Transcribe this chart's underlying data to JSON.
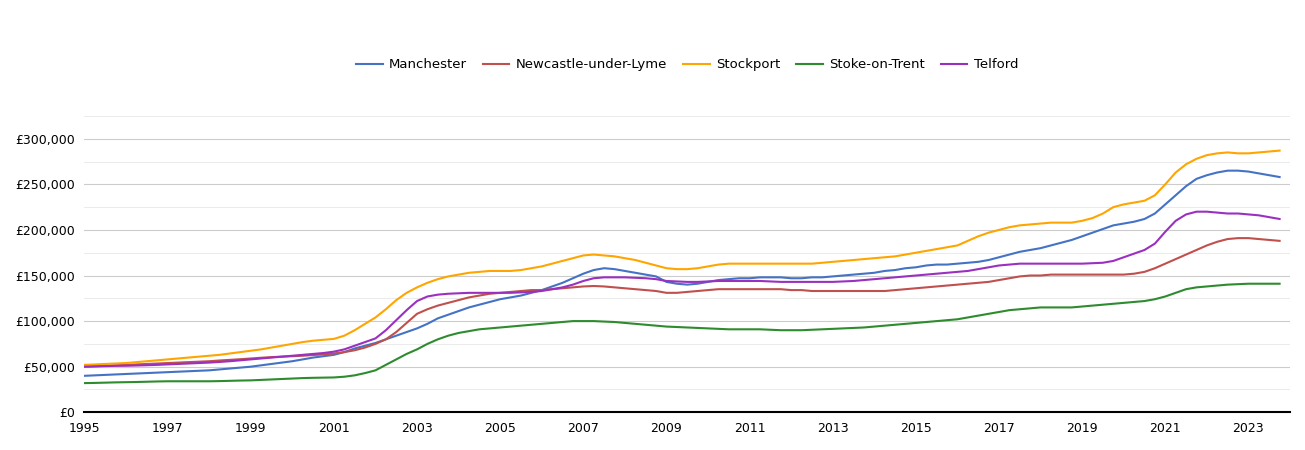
{
  "years": [
    1995.0,
    1995.25,
    1995.5,
    1995.75,
    1996.0,
    1996.25,
    1996.5,
    1996.75,
    1997.0,
    1997.25,
    1997.5,
    1997.75,
    1998.0,
    1998.25,
    1998.5,
    1998.75,
    1999.0,
    1999.25,
    1999.5,
    1999.75,
    2000.0,
    2000.25,
    2000.5,
    2000.75,
    2001.0,
    2001.25,
    2001.5,
    2001.75,
    2002.0,
    2002.25,
    2002.5,
    2002.75,
    2003.0,
    2003.25,
    2003.5,
    2003.75,
    2004.0,
    2004.25,
    2004.5,
    2004.75,
    2005.0,
    2005.25,
    2005.5,
    2005.75,
    2006.0,
    2006.25,
    2006.5,
    2006.75,
    2007.0,
    2007.25,
    2007.5,
    2007.75,
    2008.0,
    2008.25,
    2008.5,
    2008.75,
    2009.0,
    2009.25,
    2009.5,
    2009.75,
    2010.0,
    2010.25,
    2010.5,
    2010.75,
    2011.0,
    2011.25,
    2011.5,
    2011.75,
    2012.0,
    2012.25,
    2012.5,
    2012.75,
    2013.0,
    2013.25,
    2013.5,
    2013.75,
    2014.0,
    2014.25,
    2014.5,
    2014.75,
    2015.0,
    2015.25,
    2015.5,
    2015.75,
    2016.0,
    2016.25,
    2016.5,
    2016.75,
    2017.0,
    2017.25,
    2017.5,
    2017.75,
    2018.0,
    2018.25,
    2018.5,
    2018.75,
    2019.0,
    2019.25,
    2019.5,
    2019.75,
    2020.0,
    2020.25,
    2020.5,
    2020.75,
    2021.0,
    2021.25,
    2021.5,
    2021.75,
    2022.0,
    2022.25,
    2022.5,
    2022.75,
    2023.0,
    2023.25,
    2023.5,
    2023.75
  ],
  "Manchester": [
    40000,
    40500,
    41000,
    41500,
    42000,
    42500,
    43000,
    43500,
    44000,
    44500,
    45000,
    45500,
    46000,
    47000,
    48000,
    49000,
    50000,
    51500,
    53000,
    54500,
    56000,
    58000,
    60000,
    61500,
    63000,
    66000,
    70000,
    73000,
    76000,
    80000,
    84000,
    88000,
    92000,
    97000,
    103000,
    107000,
    111000,
    115000,
    118000,
    121000,
    124000,
    126000,
    128000,
    131000,
    134000,
    138000,
    142000,
    147000,
    152000,
    156000,
    158000,
    157000,
    155000,
    153000,
    151000,
    149000,
    143000,
    141000,
    140000,
    141000,
    143000,
    145000,
    146000,
    147000,
    147000,
    148000,
    148000,
    148000,
    147000,
    147000,
    148000,
    148000,
    149000,
    150000,
    151000,
    152000,
    153000,
    155000,
    156000,
    158000,
    159000,
    161000,
    162000,
    162000,
    163000,
    164000,
    165000,
    167000,
    170000,
    173000,
    176000,
    178000,
    180000,
    183000,
    186000,
    189000,
    193000,
    197000,
    201000,
    205000,
    207000,
    209000,
    212000,
    218000,
    228000,
    238000,
    248000,
    256000,
    260000,
    263000,
    265000,
    265000,
    264000,
    262000,
    260000,
    258000
  ],
  "Newcastle_under_Lyme": [
    50000,
    50500,
    51000,
    51500,
    52000,
    52500,
    53000,
    53500,
    54000,
    54500,
    55000,
    55500,
    56000,
    56800,
    57500,
    58200,
    59000,
    59800,
    60500,
    61000,
    61500,
    62000,
    62800,
    63500,
    64500,
    66000,
    68000,
    71000,
    75000,
    80000,
    88000,
    98000,
    108000,
    113000,
    117000,
    120000,
    123000,
    126000,
    128000,
    130000,
    131000,
    132000,
    133000,
    134000,
    134000,
    135000,
    136000,
    137000,
    138000,
    138500,
    138000,
    137000,
    136000,
    135000,
    134000,
    133000,
    131000,
    131000,
    132000,
    133000,
    134000,
    135000,
    135000,
    135000,
    135000,
    135000,
    135000,
    135000,
    134000,
    134000,
    133000,
    133000,
    133000,
    133000,
    133000,
    133000,
    133000,
    133000,
    134000,
    135000,
    136000,
    137000,
    138000,
    139000,
    140000,
    141000,
    142000,
    143000,
    145000,
    147000,
    149000,
    150000,
    150000,
    151000,
    151000,
    151000,
    151000,
    151000,
    151000,
    151000,
    151000,
    152000,
    154000,
    158000,
    163000,
    168000,
    173000,
    178000,
    183000,
    187000,
    190000,
    191000,
    191000,
    190000,
    189000,
    188000
  ],
  "Stockport": [
    52000,
    52500,
    53000,
    53500,
    54000,
    55000,
    56000,
    57000,
    58000,
    59000,
    60000,
    61000,
    62000,
    63000,
    64500,
    66000,
    67500,
    69000,
    71000,
    73000,
    75000,
    77000,
    78500,
    79500,
    80500,
    84000,
    90000,
    97000,
    104000,
    113000,
    123000,
    131000,
    137000,
    142000,
    146000,
    149000,
    151000,
    153000,
    154000,
    155000,
    155000,
    155000,
    156000,
    158000,
    160000,
    163000,
    166000,
    169000,
    172000,
    173000,
    172000,
    171000,
    169000,
    167000,
    164000,
    161000,
    158000,
    157000,
    157000,
    158000,
    160000,
    162000,
    163000,
    163000,
    163000,
    163000,
    163000,
    163000,
    163000,
    163000,
    163000,
    164000,
    165000,
    166000,
    167000,
    168000,
    169000,
    170000,
    171000,
    173000,
    175000,
    177000,
    179000,
    181000,
    183000,
    188000,
    193000,
    197000,
    200000,
    203000,
    205000,
    206000,
    207000,
    208000,
    208000,
    208000,
    210000,
    213000,
    218000,
    225000,
    228000,
    230000,
    232000,
    238000,
    250000,
    263000,
    272000,
    278000,
    282000,
    284000,
    285000,
    284000,
    284000,
    285000,
    286000,
    287000
  ],
  "Stoke_on_Trent": [
    32000,
    32200,
    32500,
    32800,
    33000,
    33200,
    33500,
    33800,
    34000,
    34000,
    34000,
    34000,
    34000,
    34200,
    34500,
    34800,
    35000,
    35500,
    36000,
    36500,
    37000,
    37500,
    37800,
    38000,
    38200,
    39000,
    40500,
    43000,
    46000,
    52000,
    58000,
    64000,
    69000,
    75000,
    80000,
    84000,
    87000,
    89000,
    91000,
    92000,
    93000,
    94000,
    95000,
    96000,
    97000,
    98000,
    99000,
    100000,
    100000,
    100000,
    99500,
    99000,
    98000,
    97000,
    96000,
    95000,
    94000,
    93500,
    93000,
    92500,
    92000,
    91500,
    91000,
    91000,
    91000,
    91000,
    90500,
    90000,
    90000,
    90000,
    90500,
    91000,
    91500,
    92000,
    92500,
    93000,
    94000,
    95000,
    96000,
    97000,
    98000,
    99000,
    100000,
    101000,
    102000,
    104000,
    106000,
    108000,
    110000,
    112000,
    113000,
    114000,
    115000,
    115000,
    115000,
    115000,
    116000,
    117000,
    118000,
    119000,
    120000,
    121000,
    122000,
    124000,
    127000,
    131000,
    135000,
    137000,
    138000,
    139000,
    140000,
    140500,
    141000,
    141000,
    141000,
    141000
  ],
  "Telford": [
    50000,
    50300,
    50600,
    50900,
    51000,
    51300,
    51600,
    52000,
    52500,
    53000,
    53500,
    54000,
    54500,
    55200,
    56000,
    57000,
    58000,
    59000,
    60000,
    61000,
    62000,
    63000,
    64000,
    65000,
    66500,
    69000,
    73000,
    77000,
    81000,
    90000,
    101000,
    112000,
    122000,
    127000,
    129000,
    130000,
    130500,
    131000,
    131000,
    131000,
    131000,
    131000,
    131500,
    132000,
    133000,
    135000,
    137000,
    140000,
    144000,
    147000,
    148000,
    148000,
    148000,
    147500,
    147000,
    146000,
    144000,
    143500,
    143000,
    143000,
    143500,
    144000,
    144000,
    144000,
    144000,
    144000,
    143500,
    143000,
    143000,
    143000,
    143000,
    143000,
    143000,
    143500,
    144000,
    145000,
    146000,
    147000,
    148000,
    149000,
    150000,
    151000,
    152000,
    153000,
    154000,
    155000,
    157000,
    159000,
    161000,
    162000,
    163000,
    163000,
    163000,
    163000,
    163000,
    163000,
    163000,
    163500,
    164000,
    166000,
    170000,
    174000,
    178000,
    185000,
    198000,
    210000,
    217000,
    220000,
    220000,
    219000,
    218000,
    218000,
    217000,
    216000,
    214000,
    212000
  ],
  "colors": {
    "Manchester": "#4472C4",
    "Newcastle_under_Lyme": "#C0504D",
    "Stockport": "#FFA500",
    "Stoke_on_Trent": "#2E8B2E",
    "Telford": "#9B30C0"
  },
  "legend_labels": {
    "Manchester": "Manchester",
    "Newcastle_under_Lyme": "Newcastle-under-Lyme",
    "Stockport": "Stockport",
    "Stoke_on_Trent": "Stoke-on-Trent",
    "Telford": "Telford"
  },
  "ylim": [
    0,
    340000
  ],
  "yticks": [
    0,
    50000,
    100000,
    150000,
    200000,
    250000,
    300000
  ],
  "yticks_minor": [
    25000,
    75000,
    125000,
    175000,
    225000,
    275000,
    325000
  ],
  "xticks": [
    1995,
    1997,
    1999,
    2001,
    2003,
    2005,
    2007,
    2009,
    2011,
    2013,
    2015,
    2017,
    2019,
    2021,
    2023
  ],
  "background_color": "#ffffff",
  "grid_color_major": "#cccccc",
  "grid_color_minor": "#e8e8e8",
  "line_width": 1.5
}
